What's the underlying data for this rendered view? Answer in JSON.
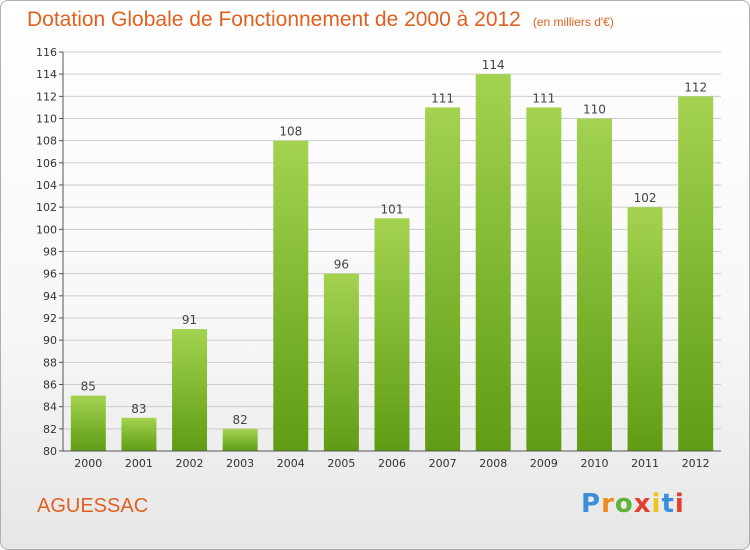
{
  "header": {
    "title": "Dotation Globale de Fonctionnement de 2000 à 2012",
    "unit": "(en milliers d'€)"
  },
  "footer": {
    "commune": "AGUESSAC",
    "logo_text": "Proxiti"
  },
  "colors": {
    "title": "#e0611f",
    "bar_top": "#a3d350",
    "bar_bottom": "#5f9c14",
    "grid": "#cccccc"
  },
  "chart_data": {
    "type": "bar",
    "title": "Dotation Globale de Fonctionnement de 2000 à 2012",
    "subtitle": "(en milliers d'€)",
    "categories": [
      "2000",
      "2001",
      "2002",
      "2003",
      "2004",
      "2005",
      "2006",
      "2007",
      "2008",
      "2009",
      "2010",
      "2011",
      "2012"
    ],
    "values": [
      85,
      83,
      91,
      82,
      108,
      96,
      101,
      111,
      114,
      111,
      110,
      102,
      112
    ],
    "ylim": [
      80,
      116
    ],
    "yticks": [
      80,
      82,
      84,
      86,
      88,
      90,
      92,
      94,
      96,
      98,
      100,
      102,
      104,
      106,
      108,
      110,
      112,
      114,
      116
    ],
    "grid": true,
    "data_labels": true
  }
}
